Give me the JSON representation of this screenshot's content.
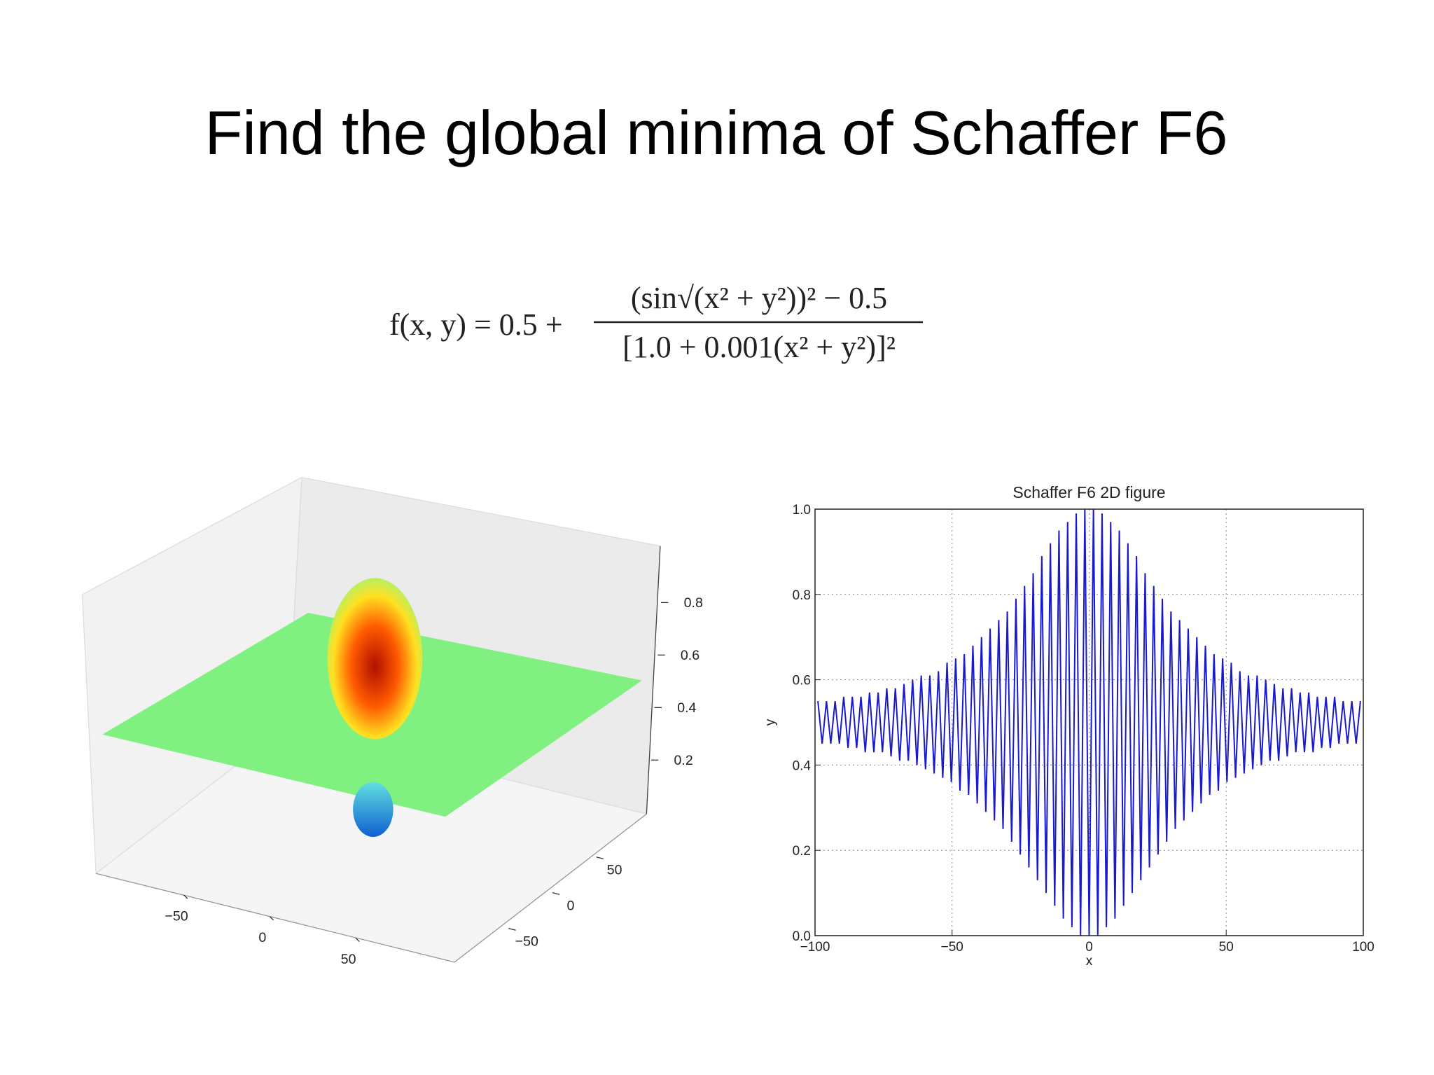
{
  "title": "Find the global minima of Schaffer F6",
  "formula": {
    "lhs": "f(x, y) = 0.5 +",
    "numerator": "(sin√(x² + y²))² − 0.5",
    "denominator": "[1.0 + 0.001(x² + y²)]²"
  },
  "chart_data": [
    {
      "type": "surface",
      "xticks": [
        {
          "value": -50,
          "label": "−50"
        },
        0,
        50
      ],
      "yticks": [
        {
          "value": -50,
          "label": "−50"
        },
        0,
        50
      ],
      "zticks": [
        0.2,
        0.4,
        0.6,
        0.8
      ]
    },
    {
      "type": "line",
      "title": "Schaffer F6 2D figure",
      "xlabel": "x",
      "ylabel": "y",
      "xlim": [
        -100,
        100
      ],
      "ylim": [
        0,
        1
      ],
      "xticks": [
        {
          "value": -100,
          "label": "−100"
        },
        {
          "value": -50,
          "label": "−50"
        },
        0,
        50,
        100
      ],
      "yticks": [
        {
          "value": 0,
          "label": "0.0"
        },
        0.2,
        0.4,
        0.6,
        0.8,
        {
          "value": 1,
          "label": "1.0"
        }
      ],
      "grid": true,
      "color": "#1a1acc",
      "x": [
        -98.96,
        -97.39,
        -95.82,
        -94.25,
        -92.68,
        -91.11,
        -89.54,
        -87.96,
        -86.39,
        -84.82,
        -83.25,
        -81.68,
        -80.11,
        -78.54,
        -76.97,
        -75.4,
        -73.83,
        -72.26,
        -70.69,
        -69.12,
        -67.54,
        -65.97,
        -64.4,
        -62.83,
        -61.26,
        -59.69,
        -58.12,
        -56.55,
        -54.98,
        -53.41,
        -51.84,
        -50.27,
        -48.69,
        -47.12,
        -45.55,
        -43.98,
        -42.41,
        -40.84,
        -39.27,
        -37.7,
        -36.13,
        -34.56,
        -32.99,
        -31.42,
        -29.85,
        -28.27,
        -26.7,
        -25.13,
        -23.56,
        -21.99,
        -20.42,
        -18.85,
        -17.28,
        -15.71,
        -14.14,
        -12.57,
        -11.0,
        -9.42,
        -7.85,
        -6.28,
        -4.71,
        -3.14,
        -1.57,
        0,
        1.57,
        3.14,
        4.71,
        6.28,
        7.85,
        9.42,
        11.0,
        12.57,
        14.14,
        15.71,
        17.28,
        18.85,
        20.42,
        21.99,
        23.56,
        25.13,
        26.7,
        28.27,
        29.85,
        31.42,
        32.99,
        34.56,
        36.13,
        37.7,
        39.27,
        40.84,
        42.41,
        43.98,
        45.55,
        47.12,
        48.69,
        50.27,
        51.84,
        53.41,
        54.98,
        56.55,
        58.12,
        59.69,
        61.26,
        62.83,
        64.4,
        65.97,
        67.54,
        69.12,
        70.69,
        72.26,
        73.83,
        75.4,
        76.97,
        78.54,
        80.11,
        81.68,
        83.25,
        84.82,
        86.39,
        87.96,
        89.54,
        91.11,
        92.68,
        94.25,
        95.82,
        97.39,
        98.96
      ],
      "values": [
        0.55,
        0.45,
        0.55,
        0.45,
        0.55,
        0.45,
        0.56,
        0.44,
        0.56,
        0.44,
        0.56,
        0.43,
        0.57,
        0.43,
        0.57,
        0.43,
        0.58,
        0.42,
        0.58,
        0.41,
        0.59,
        0.41,
        0.6,
        0.4,
        0.61,
        0.39,
        0.61,
        0.38,
        0.62,
        0.37,
        0.64,
        0.36,
        0.65,
        0.34,
        0.66,
        0.33,
        0.68,
        0.31,
        0.7,
        0.29,
        0.72,
        0.27,
        0.74,
        0.25,
        0.76,
        0.22,
        0.79,
        0.19,
        0.82,
        0.16,
        0.85,
        0.13,
        0.89,
        0.1,
        0.92,
        0.07,
        0.95,
        0.04,
        0.97,
        0.02,
        0.99,
        0.0,
        1.0,
        0.0,
        1.0,
        0.0,
        0.99,
        0.02,
        0.97,
        0.04,
        0.95,
        0.07,
        0.92,
        0.1,
        0.89,
        0.13,
        0.85,
        0.16,
        0.82,
        0.19,
        0.79,
        0.22,
        0.76,
        0.25,
        0.74,
        0.27,
        0.72,
        0.29,
        0.7,
        0.31,
        0.68,
        0.33,
        0.66,
        0.34,
        0.65,
        0.36,
        0.64,
        0.37,
        0.62,
        0.38,
        0.61,
        0.39,
        0.61,
        0.4,
        0.6,
        0.41,
        0.59,
        0.41,
        0.58,
        0.42,
        0.58,
        0.43,
        0.57,
        0.43,
        0.57,
        0.43,
        0.56,
        0.44,
        0.56,
        0.44,
        0.56,
        0.45,
        0.55,
        0.45,
        0.55,
        0.45,
        0.55
      ]
    }
  ]
}
